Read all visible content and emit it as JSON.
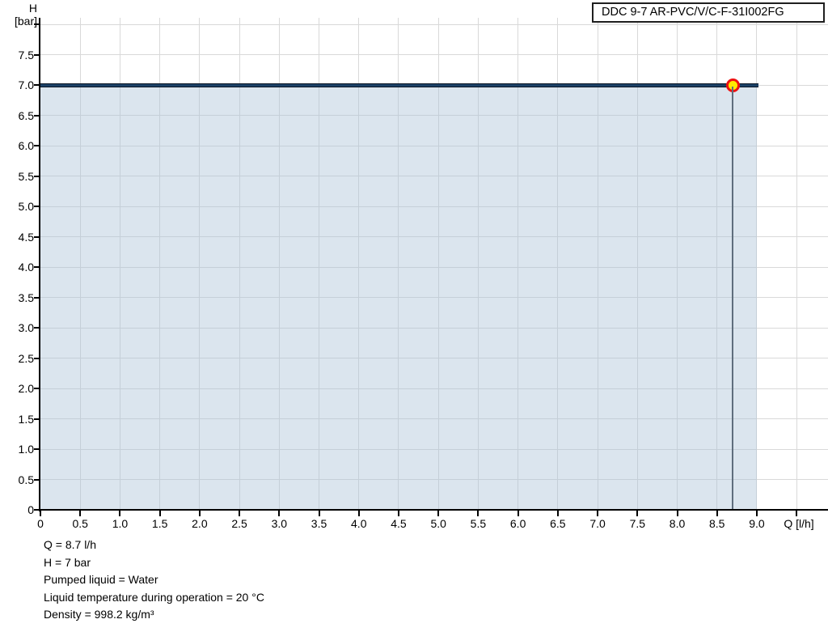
{
  "legend": {
    "label": "DDC 9-7 AR-PVC/V/C-F-31I002FG"
  },
  "axes": {
    "y_label_line1": "H",
    "y_label_line2": "[bar]",
    "x_label": "Q [l/h]"
  },
  "footer_lines": [
    "Q = 8.7 l/h",
    "H = 7 bar",
    "Pumped liquid = Water",
    "Liquid temperature during operation = 20 °C",
    "Density = 998.2 kg/m³"
  ],
  "chart_data": {
    "type": "area",
    "title": "DDC 9-7 AR-PVC/V/C-F-31I002FG",
    "xlabel": "Q [l/h]",
    "ylabel": "H [bar]",
    "xlim": [
      0,
      9.5
    ],
    "ylim": [
      0,
      8
    ],
    "grid": true,
    "legend_position": "top-right",
    "series": [
      {
        "name": "DDC 9-7 AR-PVC/V/C-F-31I002FG",
        "x": [
          0,
          9.0
        ],
        "y": [
          7.0,
          7.0
        ],
        "fill_to_zero": true
      }
    ],
    "operating_point": {
      "Q": 8.7,
      "H": 7.0
    },
    "x_ticks": [
      {
        "v": 0,
        "label": "0"
      },
      {
        "v": 0.5,
        "label": "0.5"
      },
      {
        "v": 1.0,
        "label": "1.0"
      },
      {
        "v": 1.5,
        "label": "1.5"
      },
      {
        "v": 2.0,
        "label": "2.0"
      },
      {
        "v": 2.5,
        "label": "2.5"
      },
      {
        "v": 3.0,
        "label": "3.0"
      },
      {
        "v": 3.5,
        "label": "3.5"
      },
      {
        "v": 4.0,
        "label": "4.0"
      },
      {
        "v": 4.5,
        "label": "4.5"
      },
      {
        "v": 5.0,
        "label": "5.0"
      },
      {
        "v": 5.5,
        "label": "5.5"
      },
      {
        "v": 6.0,
        "label": "6.0"
      },
      {
        "v": 6.5,
        "label": "6.5"
      },
      {
        "v": 7.0,
        "label": "7.0"
      },
      {
        "v": 7.5,
        "label": "7.5"
      },
      {
        "v": 8.0,
        "label": "8.0"
      },
      {
        "v": 8.5,
        "label": "8.5"
      },
      {
        "v": 9.0,
        "label": "9.0"
      },
      {
        "v": 9.5,
        "label": ""
      }
    ],
    "y_ticks": [
      {
        "v": 0,
        "label": "0"
      },
      {
        "v": 0.5,
        "label": "0.5"
      },
      {
        "v": 1.0,
        "label": "1.0"
      },
      {
        "v": 1.5,
        "label": "1.5"
      },
      {
        "v": 2.0,
        "label": "2.0"
      },
      {
        "v": 2.5,
        "label": "2.5"
      },
      {
        "v": 3.0,
        "label": "3.0"
      },
      {
        "v": 3.5,
        "label": "3.5"
      },
      {
        "v": 4.0,
        "label": "4.0"
      },
      {
        "v": 4.5,
        "label": "4.5"
      },
      {
        "v": 5.0,
        "label": "5.0"
      },
      {
        "v": 5.5,
        "label": "5.5"
      },
      {
        "v": 6.0,
        "label": "6.0"
      },
      {
        "v": 6.5,
        "label": "6.5"
      },
      {
        "v": 7.0,
        "label": "7.0"
      },
      {
        "v": 7.5,
        "label": "7.5"
      },
      {
        "v": 8.0,
        "label": ""
      }
    ],
    "colors": {
      "curve": "#1c4166",
      "fill": "#dbe4ed",
      "grid": "#d9d9d9",
      "axis": "#000000",
      "marker_fill": "#ffeb00",
      "marker_ring": "#ee1111",
      "duty_line": "#5f6e7d"
    }
  }
}
